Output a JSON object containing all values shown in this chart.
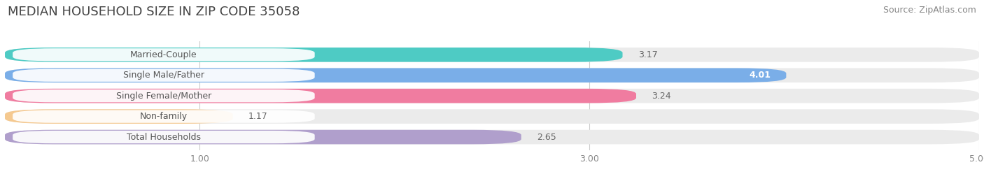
{
  "title": "MEDIAN HOUSEHOLD SIZE IN ZIP CODE 35058",
  "source": "Source: ZipAtlas.com",
  "categories": [
    "Married-Couple",
    "Single Male/Father",
    "Single Female/Mother",
    "Non-family",
    "Total Households"
  ],
  "values": [
    3.17,
    4.01,
    3.24,
    1.17,
    2.65
  ],
  "bar_colors": [
    "#4ECBC4",
    "#7AAEE8",
    "#F07CA0",
    "#F5C990",
    "#B09FCC"
  ],
  "bar_bg_colors": [
    "#EBEBEB",
    "#EBEBEB",
    "#EBEBEB",
    "#EBEBEB",
    "#EBEBEB"
  ],
  "xmin": 0,
  "xmax": 5.0,
  "xticks": [
    1.0,
    3.0,
    5.0
  ],
  "value_inside": [
    false,
    true,
    false,
    false,
    false
  ],
  "title_fontsize": 13,
  "source_fontsize": 9,
  "bar_label_fontsize": 9,
  "value_fontsize": 9,
  "background_color": "#ffffff"
}
